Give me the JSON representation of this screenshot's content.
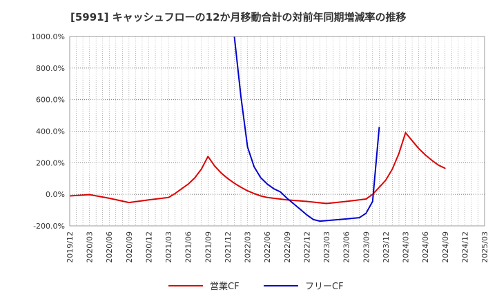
{
  "chart_data": {
    "type": "line",
    "title": "[5991]  キャッシュフローの12か月移動合計の対前年同期増減率の推移",
    "xlabel": "",
    "ylabel": "",
    "ylim": [
      -200,
      1000
    ],
    "yticks": [
      -200,
      0,
      200,
      400,
      600,
      800,
      1000
    ],
    "ytick_labels": [
      "-200.0%",
      "0.0%",
      "200.0%",
      "400.0%",
      "600.0%",
      "800.0%",
      "1000.0%"
    ],
    "xlim": [
      "2019/12",
      "2025/03"
    ],
    "xtick_labels": [
      "2019/12",
      "2020/03",
      "2020/06",
      "2020/09",
      "2020/12",
      "2021/03",
      "2021/06",
      "2021/09",
      "2021/12",
      "2022/03",
      "2022/06",
      "2022/09",
      "2022/12",
      "2023/03",
      "2023/06",
      "2023/09",
      "2023/12",
      "2024/03",
      "2024/06",
      "2024/09",
      "2024/12",
      "2025/03"
    ],
    "grid": true,
    "legend": "bottom-center",
    "series": [
      {
        "name": "営業CF",
        "color": "#dd0000",
        "points": [
          [
            "2019/12",
            -10
          ],
          [
            "2020/03",
            -2
          ],
          [
            "2020/06",
            -25
          ],
          [
            "2020/09",
            -52
          ],
          [
            "2020/12",
            -35
          ],
          [
            "2021/03",
            -20
          ],
          [
            "2021/04",
            5
          ],
          [
            "2021/05",
            35
          ],
          [
            "2021/06",
            65
          ],
          [
            "2021/07",
            105
          ],
          [
            "2021/08",
            160
          ],
          [
            "2021/09",
            240
          ],
          [
            "2021/10",
            180
          ],
          [
            "2021/11",
            135
          ],
          [
            "2021/12",
            100
          ],
          [
            "2022/01",
            70
          ],
          [
            "2022/02",
            45
          ],
          [
            "2022/03",
            22
          ],
          [
            "2022/04",
            5
          ],
          [
            "2022/05",
            -10
          ],
          [
            "2022/06",
            -20
          ],
          [
            "2022/09",
            -35
          ],
          [
            "2022/12",
            -45
          ],
          [
            "2023/03",
            -58
          ],
          [
            "2023/06",
            -45
          ],
          [
            "2023/09",
            -30
          ],
          [
            "2023/10",
            0
          ],
          [
            "2023/11",
            45
          ],
          [
            "2023/12",
            90
          ],
          [
            "2024/01",
            160
          ],
          [
            "2024/02",
            260
          ],
          [
            "2024/03",
            390
          ],
          [
            "2024/04",
            340
          ],
          [
            "2024/05",
            290
          ],
          [
            "2024/06",
            250
          ],
          [
            "2024/07",
            215
          ],
          [
            "2024/08",
            185
          ],
          [
            "2024/09",
            165
          ]
        ]
      },
      {
        "name": "フリーCF",
        "color": "#0000cc",
        "points": [
          [
            "2022/01",
            1000
          ],
          [
            "2022/02",
            620
          ],
          [
            "2022/03",
            300
          ],
          [
            "2022/04",
            175
          ],
          [
            "2022/05",
            105
          ],
          [
            "2022/06",
            65
          ],
          [
            "2022/07",
            35
          ],
          [
            "2022/08",
            15
          ],
          [
            "2022/09",
            -25
          ],
          [
            "2022/10",
            -60
          ],
          [
            "2022/11",
            -95
          ],
          [
            "2022/12",
            -130
          ],
          [
            "2023/01",
            -160
          ],
          [
            "2023/02",
            -170
          ],
          [
            "2023/05",
            -160
          ],
          [
            "2023/08",
            -148
          ],
          [
            "2023/09",
            -120
          ],
          [
            "2023/10",
            -45
          ],
          [
            "2023/11",
            425
          ]
        ]
      }
    ]
  }
}
